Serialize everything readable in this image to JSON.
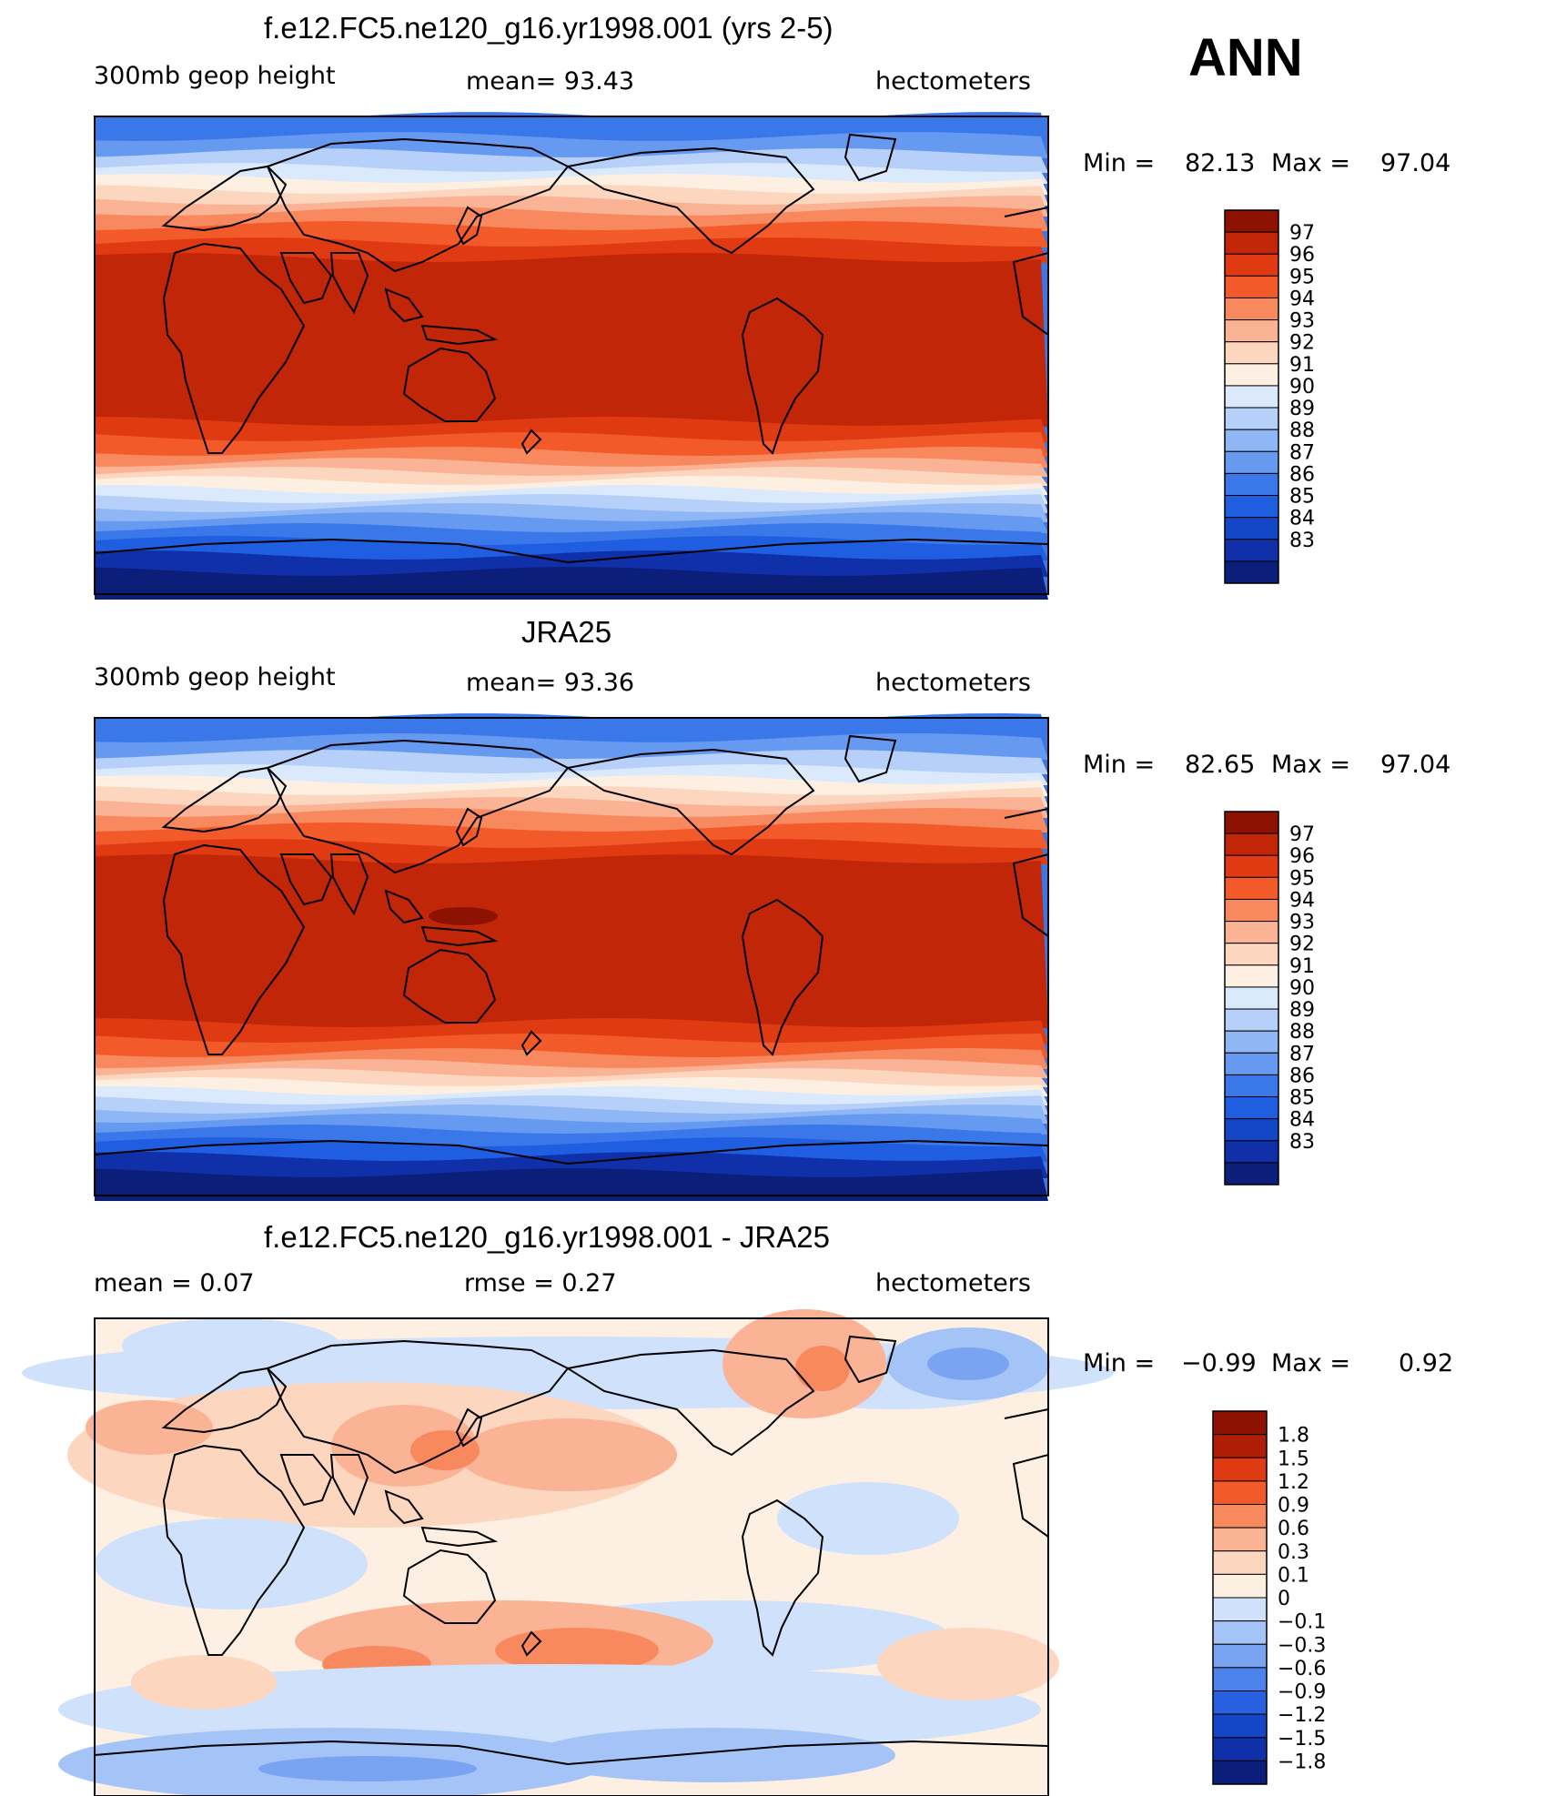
{
  "season": "ANN",
  "colors": {
    "abs": [
      "#0a1e7a",
      "#0f30a8",
      "#1446c8",
      "#1f5ee0",
      "#3a78ea",
      "#6699f0",
      "#8fb6f5",
      "#b6d0f9",
      "#dbe9fc",
      "#fdf0e2",
      "#fcd6bf",
      "#fbb395",
      "#f8895f",
      "#f25a2a",
      "#e03a12",
      "#c22608",
      "#8e1202"
    ],
    "diff": [
      "#0a1e7a",
      "#0f30a8",
      "#1446c8",
      "#2860e2",
      "#4c82ec",
      "#7aa4f2",
      "#a4c4f7",
      "#cfe1fb",
      "#fdf0e2",
      "#fcd6bf",
      "#fbb395",
      "#f8895f",
      "#f25a2a",
      "#e03a12",
      "#b01d06",
      "#8e1202"
    ]
  },
  "panels": [
    {
      "title": "f.e12.FC5.ne120_g16.yr1998.001 (yrs 2-5)",
      "left": "300mb  geop  height",
      "center": "mean=   93.43",
      "right": "hectometers",
      "min_label": "Min  =",
      "min_value": "82.13",
      "max_label": "Max  =",
      "max_value": "97.04",
      "colorbar_labels": [
        "97",
        "96",
        "95",
        "94",
        "93",
        "92",
        "91",
        "90",
        "89",
        "88",
        "87",
        "86",
        "85",
        "84",
        "83"
      ]
    },
    {
      "title": "JRA25",
      "left": "300mb  geop  height",
      "center": "mean=   93.36",
      "right": "hectometers",
      "min_label": "Min  =",
      "min_value": "82.65",
      "max_label": "Max  =",
      "max_value": "97.04",
      "colorbar_labels": [
        "97",
        "96",
        "95",
        "94",
        "93",
        "92",
        "91",
        "90",
        "89",
        "88",
        "87",
        "86",
        "85",
        "84",
        "83"
      ]
    },
    {
      "title": "f.e12.FC5.ne120_g16.yr1998.001 - JRA25",
      "left": "mean  =      0.07",
      "center": "rmse  =      0.27",
      "right": "hectometers",
      "min_label": "Min  =",
      "min_value": "−0.99",
      "max_label": "Max  =",
      "max_value": "0.92",
      "colorbar_labels": [
        "1.8",
        "1.5",
        "1.2",
        "0.9",
        "0.6",
        "0.3",
        "0.1",
        "0",
        "−0.1",
        "−0.3",
        "−0.6",
        "−0.9",
        "−1.2",
        "−1.5",
        "−1.8"
      ]
    }
  ]
}
